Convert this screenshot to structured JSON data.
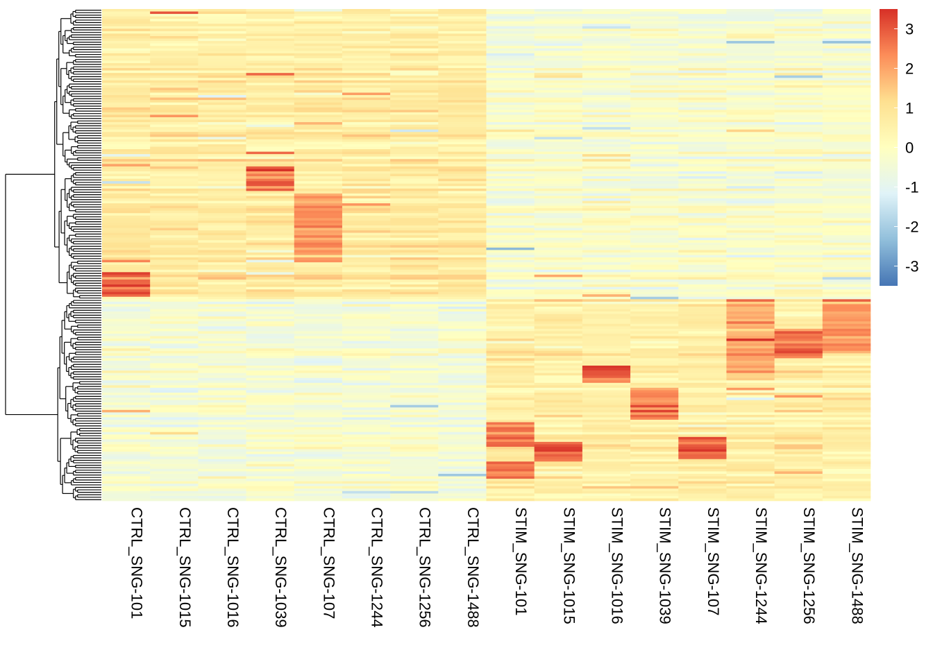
{
  "chart_data": {
    "type": "heatmap",
    "title": "",
    "xlabel": "",
    "ylabel": "",
    "columns": [
      "CTRL_SNG-101",
      "CTRL_SNG-1015",
      "CTRL_SNG-1016",
      "CTRL_SNG-1039",
      "CTRL_SNG-107",
      "CTRL_SNG-1244",
      "CTRL_SNG-1256",
      "CTRL_SNG-1488",
      "STIM_SNG-101",
      "STIM_SNG-1015",
      "STIM_SNG-1016",
      "STIM_SNG-1039",
      "STIM_SNG-107",
      "STIM_SNG-1244",
      "STIM_SNG-1256",
      "STIM_SNG-1488"
    ],
    "row_count": 200,
    "row_labels_shown": false,
    "row_dendrogram": true,
    "column_dendrogram": false,
    "value_range": [
      -3.5,
      3.5
    ],
    "colorbar": {
      "ticks": [
        3,
        2,
        1,
        0,
        -1,
        -2,
        -3
      ],
      "colors": [
        "#4575b4",
        "#91bfdb",
        "#e0f3f8",
        "#ffffbf",
        "#fee090",
        "#fc8d59",
        "#d73027"
      ],
      "placement": "right"
    },
    "row_clusters": [
      {
        "rows": [
          0,
          117
        ],
        "description_of_pattern": "higher in CTRL columns"
      },
      {
        "rows": [
          118,
          199
        ],
        "description_of_pattern": "higher in STIM columns"
      }
    ]
  }
}
